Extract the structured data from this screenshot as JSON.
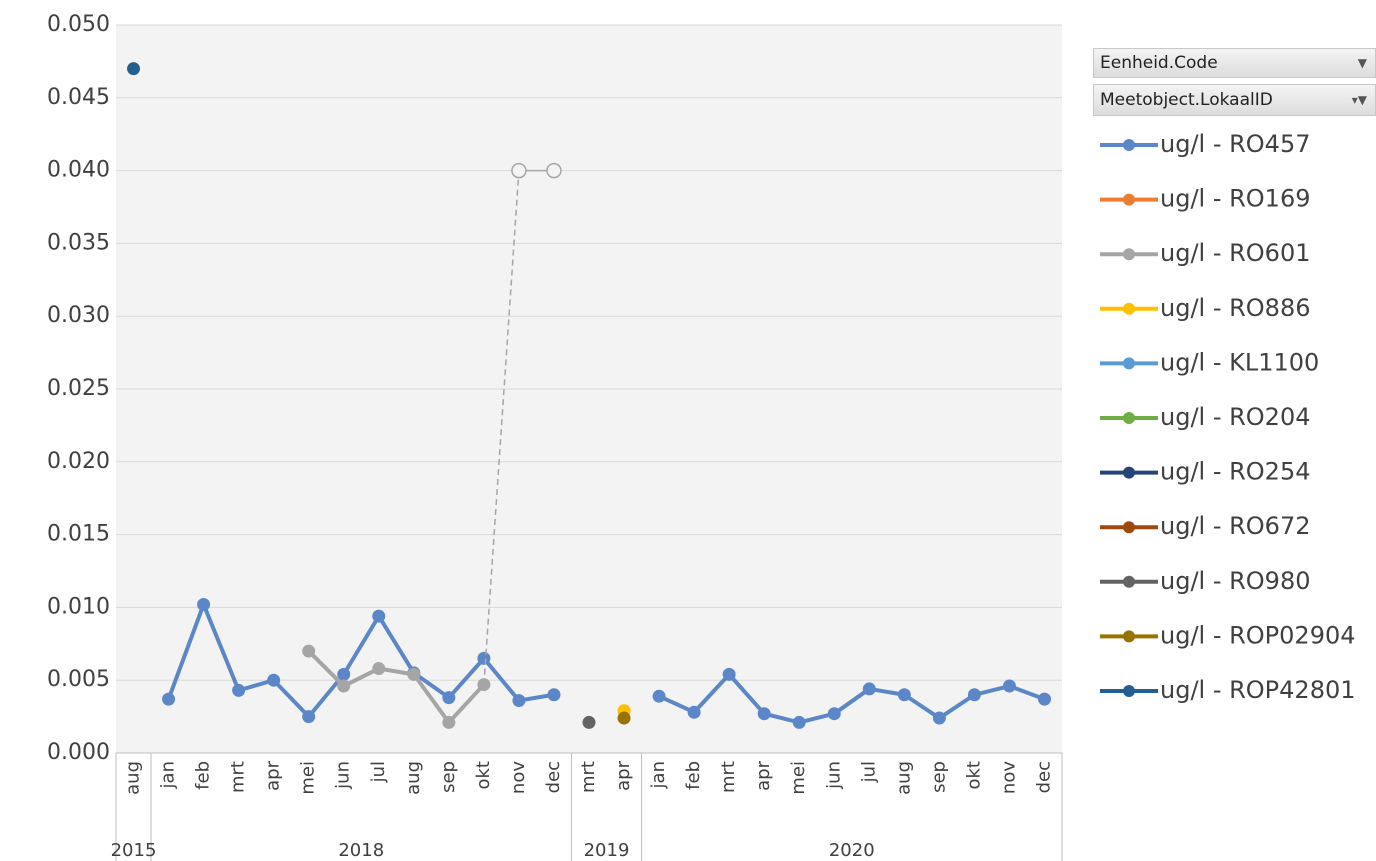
{
  "chart_data": {
    "type": "line",
    "categories": [
      "aug",
      "jan",
      "feb",
      "mrt",
      "apr",
      "mei",
      "jun",
      "jul",
      "aug",
      "sep",
      "okt",
      "nov",
      "dec",
      "mrt",
      "apr",
      "jan",
      "feb",
      "mrt",
      "apr",
      "mei",
      "jun",
      "jul",
      "aug",
      "sep",
      "okt",
      "nov",
      "dec"
    ],
    "category_groups": [
      {
        "label": "2015",
        "count": 1
      },
      {
        "label": "2018",
        "count": 12
      },
      {
        "label": "2019",
        "count": 2
      },
      {
        "label": "2020",
        "count": 12
      }
    ],
    "ylim": [
      0,
      0.05
    ],
    "yticks": [
      {
        "value": 0,
        "label": "0.000"
      },
      {
        "value": 0.005,
        "label": "0.005"
      },
      {
        "value": 0.01,
        "label": "0.010"
      },
      {
        "value": 0.015,
        "label": "0.015"
      },
      {
        "value": 0.02,
        "label": "0.020"
      },
      {
        "value": 0.025,
        "label": "0.025"
      },
      {
        "value": 0.03,
        "label": "0.030"
      },
      {
        "value": 0.035,
        "label": "0.035"
      },
      {
        "value": 0.04,
        "label": "0.040"
      },
      {
        "value": 0.045,
        "label": "0.045"
      },
      {
        "value": 0.05,
        "label": "0.050"
      }
    ],
    "grid": true,
    "legend_filters": [
      "Eenheid.Code",
      "Meetobject.LokaalID"
    ],
    "series": [
      {
        "name": "ug/l - RO457",
        "color": "#5b87c9",
        "values": [
          null,
          0.0037,
          0.0102,
          0.0043,
          0.005,
          0.0025,
          0.0054,
          0.0094,
          0.0055,
          0.0038,
          0.0065,
          0.0036,
          0.004,
          null,
          null,
          0.0039,
          0.0028,
          0.0054,
          0.0027,
          0.0021,
          0.0027,
          0.0044,
          0.004,
          0.0024,
          0.004,
          0.0046,
          0.0037
        ]
      },
      {
        "name": "ug/l - RO169",
        "color": "#ed7d31",
        "values": [
          null,
          null,
          null,
          null,
          null,
          null,
          null,
          null,
          null,
          null,
          null,
          null,
          null,
          null,
          null,
          null,
          null,
          null,
          null,
          null,
          null,
          null,
          null,
          null,
          null,
          null,
          null
        ]
      },
      {
        "name": "ug/l - RO601",
        "color": "#a5a5a5",
        "values": [
          null,
          null,
          null,
          null,
          null,
          0.007,
          0.0046,
          0.0058,
          0.0054,
          0.0021,
          0.0047,
          0.04,
          0.04,
          null,
          null,
          null,
          null,
          null,
          null,
          null,
          null,
          null,
          null,
          null,
          null,
          null,
          null
        ],
        "point_style": [
          null,
          null,
          null,
          null,
          null,
          "filled",
          "filled",
          "filled",
          "filled",
          "filled",
          "filled",
          "open",
          "open",
          null,
          null,
          null,
          null,
          null,
          null,
          null,
          null,
          null,
          null,
          null,
          null,
          null,
          null
        ]
      },
      {
        "name": "ug/l - RO886",
        "color": "#ffc000",
        "values": [
          null,
          null,
          null,
          null,
          null,
          null,
          null,
          null,
          null,
          null,
          null,
          null,
          null,
          null,
          0.0029,
          null,
          null,
          null,
          null,
          null,
          null,
          null,
          null,
          null,
          null,
          null,
          null
        ]
      },
      {
        "name": "ug/l - KL1100",
        "color": "#5b9bd5",
        "values": [
          null,
          null,
          null,
          null,
          null,
          null,
          null,
          null,
          null,
          null,
          null,
          null,
          null,
          null,
          null,
          null,
          null,
          null,
          null,
          null,
          null,
          null,
          null,
          null,
          null,
          null,
          null
        ]
      },
      {
        "name": "ug/l - RO204",
        "color": "#70ad47",
        "values": [
          null,
          null,
          null,
          null,
          null,
          null,
          null,
          null,
          null,
          null,
          null,
          null,
          null,
          null,
          null,
          null,
          null,
          null,
          null,
          null,
          null,
          null,
          null,
          null,
          null,
          null,
          null
        ]
      },
      {
        "name": "ug/l - RO254",
        "color": "#264478",
        "values": [
          null,
          null,
          null,
          null,
          null,
          null,
          null,
          null,
          null,
          null,
          null,
          null,
          null,
          null,
          null,
          null,
          null,
          null,
          null,
          null,
          null,
          null,
          null,
          null,
          null,
          null,
          null
        ]
      },
      {
        "name": "ug/l - RO672",
        "color": "#9e480e",
        "values": [
          null,
          null,
          null,
          null,
          null,
          null,
          null,
          null,
          null,
          null,
          null,
          null,
          null,
          null,
          null,
          null,
          null,
          null,
          null,
          null,
          null,
          null,
          null,
          null,
          null,
          null,
          null
        ]
      },
      {
        "name": "ug/l - RO980",
        "color": "#636363",
        "values": [
          null,
          null,
          null,
          null,
          null,
          null,
          null,
          null,
          null,
          null,
          null,
          null,
          null,
          0.0021,
          null,
          null,
          null,
          null,
          null,
          null,
          null,
          null,
          null,
          null,
          null,
          null,
          null
        ]
      },
      {
        "name": "ug/l - ROP02904",
        "color": "#997300",
        "values": [
          null,
          null,
          null,
          null,
          null,
          null,
          null,
          null,
          null,
          null,
          null,
          null,
          null,
          null,
          0.0024,
          null,
          null,
          null,
          null,
          null,
          null,
          null,
          null,
          null,
          null,
          null,
          null
        ]
      },
      {
        "name": "ug/l - ROP42801",
        "color": "#255e91",
        "values": [
          0.047,
          null,
          null,
          null,
          null,
          null,
          null,
          null,
          null,
          null,
          null,
          null,
          null,
          null,
          null,
          null,
          null,
          null,
          null,
          null,
          null,
          null,
          null,
          null,
          null,
          null,
          null
        ]
      }
    ]
  }
}
